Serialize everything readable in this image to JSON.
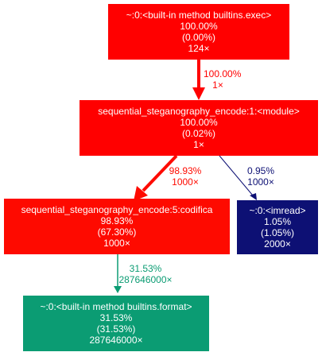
{
  "nodes": {
    "exec": {
      "name": "~:0:<built-in method builtins.exec>",
      "total": "100.00%",
      "self": "(0.00%)",
      "calls": "124×",
      "color": "#ff0000"
    },
    "module": {
      "name": "sequential_steganography_encode:1:<module>",
      "total": "100.00%",
      "self": "(0.02%)",
      "calls": "1×",
      "color": "#ff0000"
    },
    "codifica": {
      "name": "sequential_steganography_encode:5:codifica",
      "total": "98.93%",
      "self": "(67.30%)",
      "calls": "1000×",
      "color": "#fe0a00"
    },
    "imread": {
      "name": "~:0:<imread>",
      "total": "1.05%",
      "self": "(1.05%)",
      "calls": "2000×",
      "color": "#0d1074"
    },
    "format": {
      "name": "~:0:<built-in method builtins.format>",
      "total": "31.53%",
      "self": "(31.53%)",
      "calls": "287646000×",
      "color": "#0b9c73"
    }
  },
  "edges": {
    "exec_module": {
      "pct": "100.00%",
      "calls": "1×",
      "color": "#ff0000"
    },
    "module_codifica": {
      "pct": "98.93%",
      "calls": "1000×",
      "color": "#fe0a00"
    },
    "module_imread": {
      "pct": "0.95%",
      "calls": "1000×",
      "color": "#0d1074"
    },
    "codifica_format": {
      "pct": "31.53%",
      "calls": "287646000×",
      "color": "#0b9c73"
    }
  }
}
